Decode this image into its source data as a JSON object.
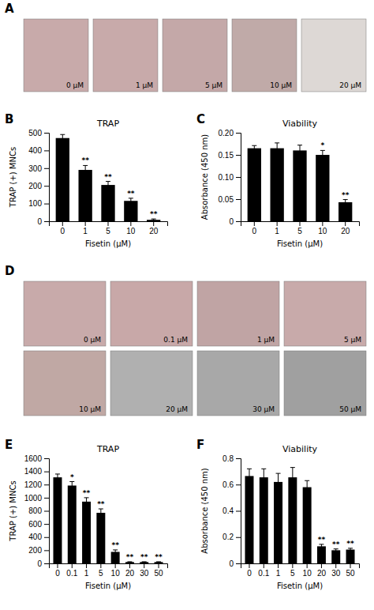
{
  "chart_data": [
    {
      "type": "image",
      "panel_label": "A",
      "categories": [
        "0 μM",
        "1 μM",
        "5 μM",
        "10 μM",
        "20 μM"
      ],
      "colors": [
        "#c8aaaa",
        "#c8aaaa",
        "#c4a8a8",
        "#c0aaa8",
        "#ddd8d5"
      ]
    },
    {
      "type": "bar",
      "panel_label": "B",
      "title": "TRAP",
      "x_label": "Fisetin (μM)",
      "y_label": "TRAP (+) MNCs",
      "categories": [
        "0",
        "1",
        "5",
        "10",
        "20"
      ],
      "values": [
        470,
        290,
        205,
        115,
        8
      ],
      "errors": [
        20,
        25,
        20,
        15,
        5
      ],
      "annotations": [
        null,
        "**",
        "**",
        "**",
        "**"
      ],
      "color": "#000000",
      "ylim": [
        0,
        500
      ],
      "yticks": [
        0,
        100,
        200,
        300,
        400,
        500
      ]
    },
    {
      "type": "bar",
      "panel_label": "C",
      "title": "Viability",
      "x_label": "Fisetin (μM)",
      "y_label": "Absorbance (450 nm)",
      "categories": [
        "0",
        "1",
        "5",
        "10",
        "20"
      ],
      "values": [
        0.165,
        0.165,
        0.16,
        0.15,
        0.043
      ],
      "errors": [
        0.006,
        0.012,
        0.012,
        0.01,
        0.006
      ],
      "annotations": [
        null,
        null,
        null,
        "*",
        "**"
      ],
      "color": "#000000",
      "ylim": [
        0,
        0.2
      ],
      "yticks": [
        0,
        0.05,
        {
          "value": 0.1,
          "label": "0.10"
        },
        0.15,
        {
          "value": 0.2,
          "label": "0.20"
        }
      ]
    },
    {
      "type": "image",
      "panel_label": "D",
      "categories": [
        "0 μM",
        "0.1 μM",
        "1 μM",
        "5 μM",
        "10 μM",
        "20 μM",
        "30 μM",
        "50 μM"
      ],
      "colors": [
        "#c8aaaa",
        "#c8a8a8",
        "#c0a4a4",
        "#c8aaaa",
        "#c0a8a4",
        "#b0b0b0",
        "#a8a8a8",
        "#a0a0a0"
      ]
    },
    {
      "type": "bar",
      "panel_label": "E",
      "title": "TRAP",
      "x_label": "Fisetin (μM)",
      "y_label": "TRAP (+) MNCs",
      "categories": [
        "0",
        "0.1",
        "1",
        "5",
        "10",
        "20",
        "30",
        "50"
      ],
      "values": [
        1310,
        1185,
        940,
        770,
        175,
        20,
        20,
        20
      ],
      "errors": [
        50,
        60,
        60,
        60,
        30,
        5,
        5,
        5
      ],
      "annotations": [
        null,
        "*",
        "**",
        "**",
        "**",
        "**",
        "**",
        "**"
      ],
      "color": "#000000",
      "ylim": [
        0,
        1600
      ],
      "yticks": [
        0,
        200,
        400,
        600,
        800,
        1000,
        1200,
        1400,
        1600
      ]
    },
    {
      "type": "bar",
      "panel_label": "F",
      "title": "Viability",
      "x_label": "Fisetin (μM)",
      "y_label": "Absorbance (450 nm)",
      "categories": [
        "0",
        "0.1",
        "1",
        "5",
        "10",
        "20",
        "30",
        "50"
      ],
      "values": [
        0.665,
        0.655,
        0.62,
        0.655,
        0.58,
        0.13,
        0.1,
        0.105
      ],
      "errors": [
        0.055,
        0.065,
        0.065,
        0.075,
        0.05,
        0.015,
        0.01,
        0.01
      ],
      "annotations": [
        null,
        null,
        null,
        null,
        null,
        "**",
        "**",
        "**"
      ],
      "color": "#000000",
      "ylim": [
        0,
        0.8
      ],
      "yticks": [
        0,
        0.2,
        0.4,
        0.6,
        0.8
      ]
    }
  ]
}
